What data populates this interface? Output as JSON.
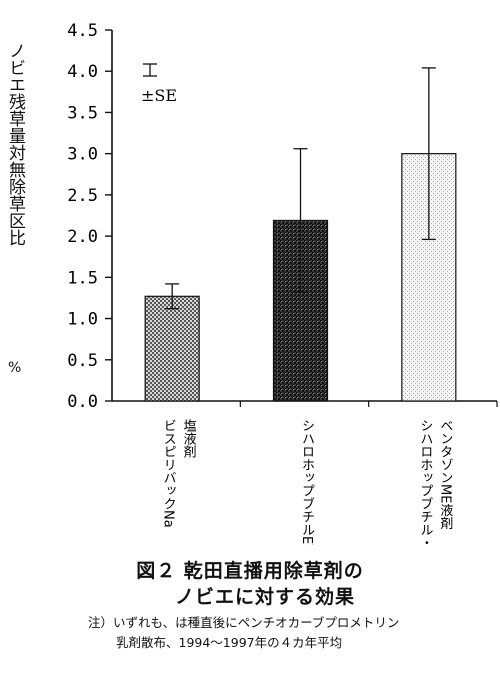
{
  "chart_data": {
    "type": "bar",
    "ylabel": "ノビエ残草量対無除草区比",
    "yunit": "%",
    "ylim": [
      0.0,
      4.5
    ],
    "yticks": [
      "0.0",
      "0.5",
      "1.0",
      "1.5",
      "2.0",
      "2.5",
      "3.0",
      "3.5",
      "4.0",
      "4.5"
    ],
    "categories": [
      "ビスピリバックNa塩液剤",
      "シハロホップブチルEW",
      "シハロホップブチル・ベンタゾンME液剤"
    ],
    "category_lines": [
      [
        "ビスピリバックNa",
        "塩液剤"
      ],
      [
        "シハロホップブチルEW"
      ],
      [
        "シハロホップブチル・",
        "ベンタゾンME液剤"
      ]
    ],
    "values": [
      1.27,
      2.19,
      3.0
    ],
    "errors": [
      0.15,
      0.87,
      1.04
    ],
    "patterns": [
      "fine-check",
      "dense-check",
      "light-dots"
    ],
    "legend": {
      "label": "±SE",
      "placement": "top-left"
    },
    "grid": false
  },
  "caption": {
    "line1": "図２ 乾田直播用除草剤の",
    "line2": "ノビエに対する効果",
    "note1": "注）いずれも、は種直後にペンチオカーブプロメトリン",
    "note2": "乳剤散布、1994〜1997年の４カ年平均"
  }
}
